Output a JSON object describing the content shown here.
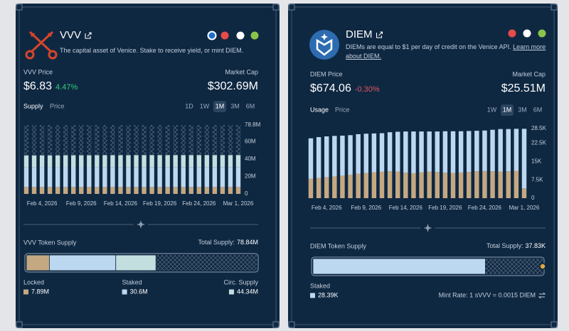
{
  "cards": [
    {
      "name": "VVV",
      "description": "The capital asset of Venice. Stake to receive yield, or mint DIEM.",
      "price_label": "VVV Price",
      "price": "$6.83",
      "change": "4.47%",
      "change_direction": "up",
      "market_cap_label": "Market Cap",
      "market_cap": "$302.69M",
      "tabs": [
        {
          "label": "Supply",
          "active": true
        },
        {
          "label": "Price",
          "active": false
        }
      ],
      "ranges": [
        {
          "label": "1D",
          "active": false
        },
        {
          "label": "1W",
          "active": false
        },
        {
          "label": "1M",
          "active": true
        },
        {
          "label": "3M",
          "active": false
        },
        {
          "label": "6M",
          "active": false
        }
      ],
      "supply": {
        "title": "VVV Token Supply",
        "total_label": "Total Supply:",
        "total": {
          "value": 78.84,
          "label": "78.84M"
        },
        "items": [
          {
            "name": "Locked",
            "color": "#c4a882",
            "value": 7.89,
            "label": "7.89M"
          },
          {
            "name": "Staked",
            "color": "#bcd8f1",
            "value": 30.6,
            "label": "30.6M"
          },
          {
            "name": "Circ. Supply",
            "color": "#c3dede",
            "value": 44.34,
            "label": "44.34M"
          }
        ]
      }
    },
    {
      "name": "DIEM",
      "description": "DIEMs are equal to $1 per day of credit on the Venice API.",
      "link": "Learn more about DIEM.",
      "price_label": "DIEM Price",
      "price": "$674.06",
      "change": "-0.30%",
      "change_direction": "down",
      "market_cap_label": "Market Cap",
      "market_cap": "$25.51M",
      "tabs": [
        {
          "label": "Usage",
          "active": true
        },
        {
          "label": "Price",
          "active": false
        }
      ],
      "ranges": [
        {
          "label": "1W",
          "active": false
        },
        {
          "label": "1M",
          "active": true
        },
        {
          "label": "3M",
          "active": false
        },
        {
          "label": "6M",
          "active": false
        }
      ],
      "supply": {
        "title": "DIEM Token Supply",
        "total_label": "Total Supply:",
        "total": {
          "value": 37.83,
          "label": "37.83K"
        },
        "items": [
          {
            "name": "Staked",
            "color": "#bcd8f1",
            "value": 28.39,
            "label": "28.39K"
          }
        ]
      },
      "mint_rate": "Mint Rate: 1 sVVV = 0.0015 DIEM"
    }
  ],
  "chart_data": [
    {
      "type": "bar",
      "stacked": true,
      "categories": [
        null,
        null,
        "Feb 4, 2026",
        null,
        null,
        null,
        null,
        "Feb 9, 2026",
        null,
        null,
        null,
        null,
        "Feb 14, 2026",
        null,
        null,
        null,
        null,
        "Feb 19, 2026",
        null,
        null,
        null,
        null,
        "Feb 24, 2026",
        null,
        null,
        null,
        null,
        "Mar 1, 2026"
      ],
      "series": [
        {
          "color": "#c4a882",
          "values": [
            7.9,
            7.9,
            7.9,
            7.9,
            7.9,
            7.9,
            7.9,
            7.9,
            7.9,
            7.9,
            7.9,
            7.9,
            7.9,
            7.9,
            7.9,
            7.9,
            7.9,
            7.9,
            7.9,
            7.9,
            7.9,
            7.9,
            7.9,
            7.9,
            7.9,
            7.9,
            7.9,
            7.9
          ]
        },
        {
          "color": "#bcd8f1",
          "values": [
            22.4,
            22.4,
            22.5,
            22.5,
            22.5,
            22.6,
            22.6,
            22.6,
            22.6,
            22.7,
            22.7,
            22.7,
            22.7,
            22.7,
            22.8,
            22.8,
            22.8,
            22.8,
            22.8,
            22.8,
            22.8,
            22.8,
            22.8,
            22.8,
            22.8,
            22.8,
            22.8,
            22.8
          ]
        },
        {
          "color": "#c3dede",
          "values": [
            13.7,
            13.7,
            13.7,
            13.7,
            13.7,
            13.7,
            13.7,
            13.7,
            13.7,
            13.7,
            13.7,
            13.7,
            13.7,
            13.7,
            13.7,
            13.7,
            13.7,
            13.7,
            13.7,
            13.7,
            13.7,
            13.7,
            13.7,
            13.7,
            13.7,
            13.7,
            13.7,
            13.7
          ]
        },
        {
          "color": "#4d6278",
          "pattern": "hatch",
          "values": [
            34.8,
            34.8,
            34.7,
            34.7,
            34.7,
            34.6,
            34.6,
            34.6,
            34.6,
            34.5,
            34.5,
            34.5,
            34.5,
            34.5,
            34.4,
            34.4,
            34.4,
            34.4,
            34.4,
            34.4,
            34.4,
            34.4,
            34.4,
            34.4,
            34.4,
            34.4,
            34.4,
            34.4
          ]
        }
      ],
      "ylim": [
        0,
        78.8
      ],
      "yticks": [
        0,
        {
          "value": 20,
          "label": "20M"
        },
        {
          "value": 40,
          "label": "40M"
        },
        {
          "value": 60,
          "label": "60M"
        },
        {
          "value": 78.8,
          "label": "78.8M"
        }
      ]
    },
    {
      "type": "bar",
      "stacked": true,
      "categories": [
        null,
        null,
        "Feb 4, 2026",
        null,
        null,
        null,
        null,
        "Feb 9, 2026",
        null,
        null,
        null,
        null,
        "Feb 14, 2026",
        null,
        null,
        null,
        null,
        "Feb 19, 2026",
        null,
        null,
        null,
        null,
        "Feb 24, 2026",
        null,
        null,
        null,
        null,
        "Mar 1, 2026"
      ],
      "series": [
        {
          "color": "#c4a882",
          "values": [
            8.0,
            8.3,
            8.6,
            8.9,
            9.2,
            9.6,
            10.0,
            10.3,
            10.6,
            10.8,
            11.0,
            10.9,
            10.4,
            10.2,
            10.6,
            10.9,
            10.7,
            10.4,
            10.3,
            10.5,
            10.7,
            11.0,
            11.1,
            11.0,
            10.9,
            11.0,
            11.2,
            4.0
          ]
        },
        {
          "color": "#bcd8f1",
          "values": [
            16.5,
            16.7,
            16.7,
            16.6,
            16.4,
            16.2,
            16.2,
            16.1,
            15.9,
            15.8,
            16.0,
            16.3,
            16.9,
            17.1,
            16.7,
            16.4,
            16.6,
            17.0,
            17.1,
            16.9,
            16.8,
            16.6,
            16.6,
            17.0,
            17.4,
            17.3,
            17.2,
            24.4
          ]
        }
      ],
      "ylim": [
        0,
        28.5
      ],
      "yticks": [
        0,
        {
          "value": 7.5,
          "label": "7.5K"
        },
        {
          "value": 15,
          "label": "15K"
        },
        {
          "value": 22.5,
          "label": "22.5K"
        },
        {
          "value": 28.5,
          "label": "28.5K"
        }
      ]
    }
  ]
}
